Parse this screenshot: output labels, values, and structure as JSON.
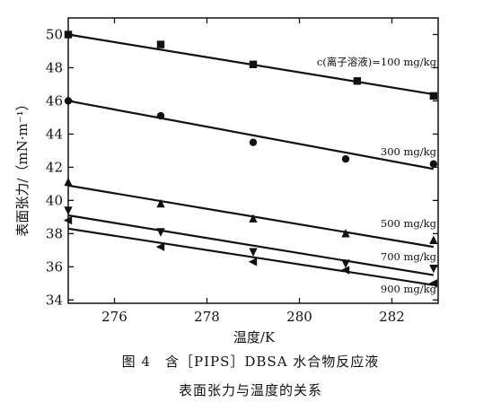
{
  "chart_data": {
    "type": "scatter",
    "xlabel": "温度/K",
    "ylabel": "表面张力/（mN·m⁻¹）",
    "xlim": [
      275,
      283
    ],
    "ylim": [
      33.8,
      51
    ],
    "x_ticks": [
      276,
      278,
      280,
      282
    ],
    "y_ticks": [
      34,
      36,
      38,
      40,
      42,
      44,
      46,
      48,
      50
    ],
    "grid": false,
    "legend": "none",
    "series": [
      {
        "name": "c(离子溶液)=100 mg/kg",
        "marker": "square",
        "points": [
          [
            275.0,
            50.0
          ],
          [
            277.0,
            49.4
          ],
          [
            279.0,
            48.2
          ],
          [
            281.25,
            47.2
          ],
          [
            282.9,
            46.3
          ]
        ],
        "fit": [
          [
            275.0,
            50.0
          ],
          [
            282.9,
            46.4
          ]
        ]
      },
      {
        "name": "300 mg/kg",
        "marker": "circle",
        "points": [
          [
            275.0,
            46.0
          ],
          [
            277.0,
            45.1
          ],
          [
            279.0,
            43.5
          ],
          [
            281.0,
            42.5
          ],
          [
            282.9,
            42.2
          ]
        ],
        "fit": [
          [
            275.0,
            46.0
          ],
          [
            282.9,
            41.9
          ]
        ]
      },
      {
        "name": "500 mg/kg",
        "marker": "triangle-up",
        "points": [
          [
            275.0,
            41.1
          ],
          [
            277.0,
            39.8
          ],
          [
            279.0,
            38.9
          ],
          [
            281.0,
            38.0
          ],
          [
            282.9,
            37.6
          ]
        ],
        "fit": [
          [
            275.0,
            40.9
          ],
          [
            282.9,
            37.2
          ]
        ]
      },
      {
        "name": "700 mg/kg",
        "marker": "triangle-down",
        "points": [
          [
            275.0,
            39.4
          ],
          [
            277.0,
            38.1
          ],
          [
            279.0,
            36.9
          ],
          [
            281.0,
            36.2
          ],
          [
            282.9,
            35.9
          ]
        ],
        "fit": [
          [
            275.0,
            39.1
          ],
          [
            282.9,
            35.5
          ]
        ]
      },
      {
        "name": "900 mg/kg",
        "marker": "triangle-left",
        "points": [
          [
            275.0,
            38.8
          ],
          [
            277.0,
            37.2
          ],
          [
            279.0,
            36.3
          ],
          [
            281.0,
            35.8
          ],
          [
            282.9,
            35.0
          ]
        ],
        "fit": [
          [
            275.0,
            38.3
          ],
          [
            282.9,
            34.9
          ]
        ]
      }
    ]
  },
  "caption": {
    "line1": "图 4　含［PIPS］DBSA 水合物反应液",
    "line2": "表面张力与温度的关系"
  }
}
